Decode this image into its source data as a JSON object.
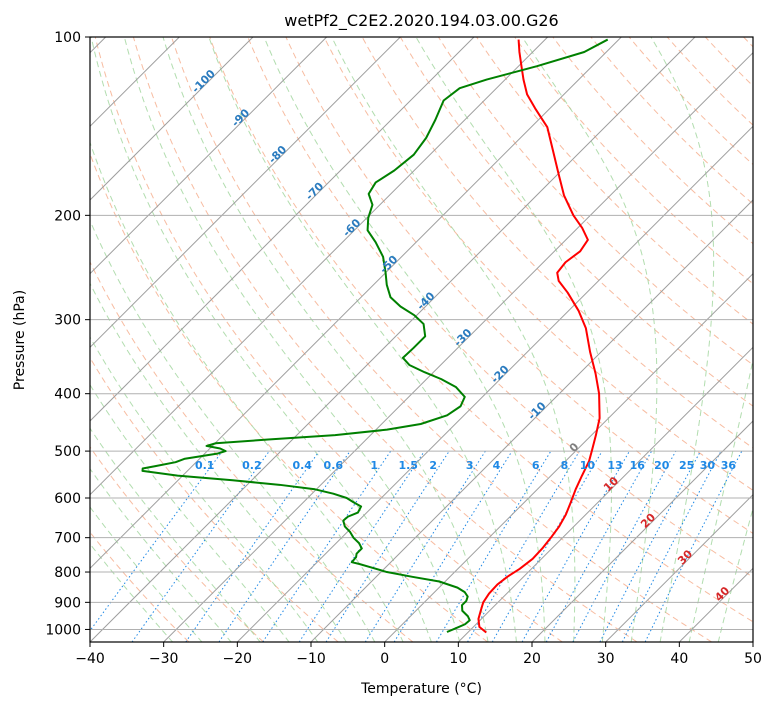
{
  "chart_data": {
    "type": "skew-t",
    "title": "wetPf2_C2E2.2020.194.03.00.G26",
    "xlabel": "Temperature (°C)",
    "ylabel": "Pressure (hPa)",
    "xlim": [
      -40,
      50
    ],
    "ylim_hpa": [
      1050,
      100
    ],
    "yscale": "log",
    "xticks": [
      -40,
      -30,
      -20,
      -10,
      0,
      10,
      20,
      30,
      40,
      50
    ],
    "yticks": [
      100,
      200,
      300,
      400,
      500,
      600,
      700,
      800,
      900,
      1000
    ],
    "grid": true,
    "colors": {
      "temperature": "#ff0000",
      "dewpoint": "#008000",
      "isotherm": "#9e9e9e",
      "dry_adiabat": "#f4a582",
      "moist_adiabat": "#9fd49b",
      "mixing_ratio": "#1e88e5",
      "label_blue": "#2a7bbf",
      "label_red": "#d62728"
    },
    "series": [
      {
        "name": "temperature",
        "points": [
          {
            "p": 1012,
            "t": 12.5
          },
          {
            "p": 990,
            "t": 10.8
          },
          {
            "p": 960,
            "t": 9.6
          },
          {
            "p": 930,
            "t": 8.8
          },
          {
            "p": 900,
            "t": 8.0
          },
          {
            "p": 870,
            "t": 7.6
          },
          {
            "p": 840,
            "t": 7.5
          },
          {
            "p": 815,
            "t": 7.8
          },
          {
            "p": 790,
            "t": 8.4
          },
          {
            "p": 760,
            "t": 8.8
          },
          {
            "p": 730,
            "t": 8.7
          },
          {
            "p": 700,
            "t": 8.4
          },
          {
            "p": 670,
            "t": 8.0
          },
          {
            "p": 640,
            "t": 7.3
          },
          {
            "p": 610,
            "t": 6.3
          },
          {
            "p": 580,
            "t": 5.2
          },
          {
            "p": 550,
            "t": 4.2
          },
          {
            "p": 520,
            "t": 3.2
          },
          {
            "p": 500,
            "t": 2.2
          },
          {
            "p": 470,
            "t": 0.6
          },
          {
            "p": 440,
            "t": -1.2
          },
          {
            "p": 400,
            "t": -4.6
          },
          {
            "p": 370,
            "t": -7.8
          },
          {
            "p": 340,
            "t": -11.5
          },
          {
            "p": 310,
            "t": -15.3
          },
          {
            "p": 290,
            "t": -18.6
          },
          {
            "p": 270,
            "t": -22.6
          },
          {
            "p": 258,
            "t": -25.4
          },
          {
            "p": 250,
            "t": -26.7
          },
          {
            "p": 240,
            "t": -27.0
          },
          {
            "p": 230,
            "t": -26.5
          },
          {
            "p": 220,
            "t": -27.0
          },
          {
            "p": 210,
            "t": -29.4
          },
          {
            "p": 200,
            "t": -32.3
          },
          {
            "p": 185,
            "t": -36.3
          },
          {
            "p": 170,
            "t": -40.0
          },
          {
            "p": 155,
            "t": -44.0
          },
          {
            "p": 142,
            "t": -47.8
          },
          {
            "p": 132,
            "t": -52.0
          },
          {
            "p": 125,
            "t": -55.0
          },
          {
            "p": 118,
            "t": -57.5
          },
          {
            "p": 112,
            "t": -59.6
          },
          {
            "p": 106,
            "t": -61.8
          },
          {
            "p": 101,
            "t": -63.6
          }
        ]
      },
      {
        "name": "dewpoint",
        "points": [
          {
            "p": 1010,
            "t": 7.1
          },
          {
            "p": 995,
            "t": 7.8
          },
          {
            "p": 980,
            "t": 8.5
          },
          {
            "p": 965,
            "t": 8.6
          },
          {
            "p": 950,
            "t": 7.8
          },
          {
            "p": 930,
            "t": 6.3
          },
          {
            "p": 910,
            "t": 5.5
          },
          {
            "p": 895,
            "t": 5.5
          },
          {
            "p": 880,
            "t": 5.1
          },
          {
            "p": 865,
            "t": 4.1
          },
          {
            "p": 850,
            "t": 2.5
          },
          {
            "p": 830,
            "t": -0.8
          },
          {
            "p": 815,
            "t": -5.1
          },
          {
            "p": 800,
            "t": -9.2
          },
          {
            "p": 785,
            "t": -12.1
          },
          {
            "p": 775,
            "t": -14.1
          },
          {
            "p": 770,
            "t": -15.3
          },
          {
            "p": 755,
            "t": -15.4
          },
          {
            "p": 745,
            "t": -15.8
          },
          {
            "p": 730,
            "t": -15.8
          },
          {
            "p": 715,
            "t": -16.9
          },
          {
            "p": 700,
            "t": -18.4
          },
          {
            "p": 685,
            "t": -19.6
          },
          {
            "p": 670,
            "t": -21.1
          },
          {
            "p": 655,
            "t": -22.1
          },
          {
            "p": 645,
            "t": -22.0
          },
          {
            "p": 635,
            "t": -21.2
          },
          {
            "p": 620,
            "t": -21.6
          },
          {
            "p": 610,
            "t": -23.2
          },
          {
            "p": 600,
            "t": -24.7
          },
          {
            "p": 590,
            "t": -27.1
          },
          {
            "p": 580,
            "t": -30.2
          },
          {
            "p": 570,
            "t": -35.6
          },
          {
            "p": 560,
            "t": -42.6
          },
          {
            "p": 550,
            "t": -50.7
          },
          {
            "p": 540,
            "t": -56.1
          },
          {
            "p": 535,
            "t": -56.4
          },
          {
            "p": 530,
            "t": -55.0
          },
          {
            "p": 522,
            "t": -52.8
          },
          {
            "p": 515,
            "t": -52.0
          },
          {
            "p": 510,
            "t": -50.2
          },
          {
            "p": 505,
            "t": -48.3
          },
          {
            "p": 500,
            "t": -47.5
          },
          {
            "p": 495,
            "t": -48.6
          },
          {
            "p": 490,
            "t": -50.8
          },
          {
            "p": 485,
            "t": -49.9
          },
          {
            "p": 478,
            "t": -43.3
          },
          {
            "p": 470,
            "t": -34.8
          },
          {
            "p": 460,
            "t": -28.5
          },
          {
            "p": 450,
            "t": -24.7
          },
          {
            "p": 435,
            "t": -22.3
          },
          {
            "p": 420,
            "t": -21.7
          },
          {
            "p": 405,
            "t": -22.4
          },
          {
            "p": 390,
            "t": -24.9
          },
          {
            "p": 378,
            "t": -28.0
          },
          {
            "p": 368,
            "t": -31.2
          },
          {
            "p": 358,
            "t": -34.2
          },
          {
            "p": 348,
            "t": -36.1
          },
          {
            "p": 335,
            "t": -36.0
          },
          {
            "p": 320,
            "t": -36.0
          },
          {
            "p": 305,
            "t": -37.9
          },
          {
            "p": 295,
            "t": -40.3
          },
          {
            "p": 285,
            "t": -43.4
          },
          {
            "p": 275,
            "t": -46.0
          },
          {
            "p": 262,
            "t": -48.2
          },
          {
            "p": 250,
            "t": -50.0
          },
          {
            "p": 235,
            "t": -52.5
          },
          {
            "p": 222,
            "t": -55.5
          },
          {
            "p": 212,
            "t": -58.2
          },
          {
            "p": 202,
            "t": -59.8
          },
          {
            "p": 192,
            "t": -61.0
          },
          {
            "p": 184,
            "t": -63.0
          },
          {
            "p": 176,
            "t": -63.6
          },
          {
            "p": 168,
            "t": -62.7
          },
          {
            "p": 158,
            "t": -62.2
          },
          {
            "p": 148,
            "t": -62.8
          },
          {
            "p": 138,
            "t": -64.0
          },
          {
            "p": 128,
            "t": -65.5
          },
          {
            "p": 122,
            "t": -65.0
          },
          {
            "p": 118,
            "t": -62.5
          },
          {
            "p": 112,
            "t": -57.5
          },
          {
            "p": 106,
            "t": -53.0
          },
          {
            "p": 101,
            "t": -51.5
          }
        ]
      }
    ],
    "isotherm_labels": [
      "-100",
      "-90",
      "-80",
      "-70",
      "-60",
      "-50",
      "-40",
      "-30",
      "-20",
      "-10",
      "0",
      "10",
      "20",
      "30",
      "40"
    ],
    "mixing_ratio_labels": [
      "0.1",
      "0.2",
      "0.4",
      "0.6",
      "1",
      "1.5",
      "2",
      "3",
      "4",
      "6",
      "8",
      "10",
      "13",
      "16",
      "20",
      "25",
      "30",
      "36"
    ]
  }
}
